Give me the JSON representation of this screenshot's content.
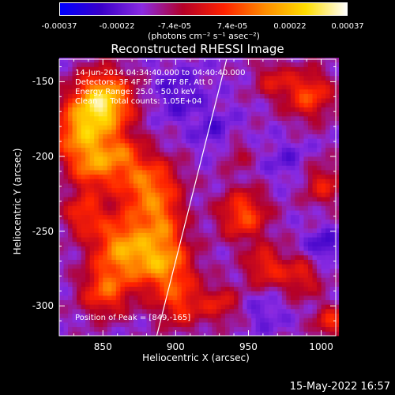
{
  "colorbar": {
    "ticks": [
      "-0.00037",
      "-0.00022",
      "-7.4e-05",
      "7.4e-05",
      "0.00022",
      "0.00037"
    ],
    "units": "(photons cm⁻² s⁻¹ asec⁻²)",
    "colors": [
      "#0000ff",
      "#3a00c8",
      "#8a2be2",
      "#b40028",
      "#ff2200",
      "#ff8c00",
      "#ffdd00",
      "#ffffff"
    ]
  },
  "chart_data": {
    "type": "heatmap",
    "title": "Reconstructed RHESSI Image",
    "xlabel": "Heliocentric X (arcsec)",
    "ylabel": "Heliocentric Y (arcsec)",
    "xlim": [
      820,
      1010
    ],
    "ylim": [
      -320,
      -135
    ],
    "xticks": [
      "850",
      "900",
      "950",
      "1000"
    ],
    "xtick_values": [
      850,
      900,
      950,
      1000
    ],
    "yticks": [
      "-150",
      "-200",
      "-250",
      "-300"
    ],
    "ytick_values": [
      -150,
      -200,
      -250,
      -300
    ],
    "peak": [
      849,
      -165
    ],
    "limb_line": [
      [
        887,
        -320
      ],
      [
        935,
        -135
      ]
    ],
    "annotations": {
      "time": "14-Jun-2014 04:34:40.000 to 04:40:40.000",
      "detectors": "Detectors: 3F 4F 5F 6F 7F 8F, Att 0",
      "energy": "Energy Range: 25.0 - 50.0 keV",
      "method": "Clean     Total counts: 1.05E+04",
      "peak": "Position of Peak = [849,-165]"
    }
  },
  "timestamp": "15-May-2022 16:57"
}
